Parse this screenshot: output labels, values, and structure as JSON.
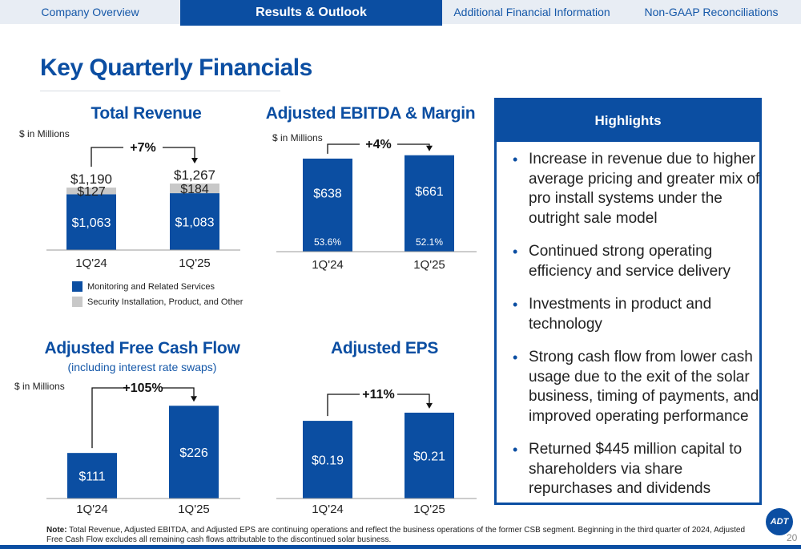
{
  "nav": {
    "tabs": [
      {
        "label": "Company Overview"
      },
      {
        "label": "Results & Outlook"
      },
      {
        "label": "Additional Financial Information"
      },
      {
        "label": "Non-GAAP Reconciliations"
      }
    ],
    "active_index": 1
  },
  "page_title": "Key Quarterly Financials",
  "colors": {
    "brand": "#0b4ea2",
    "gray_bar": "#c8c8c8"
  },
  "chart_data": [
    {
      "type": "bar",
      "stacked": true,
      "title": "Total Revenue",
      "unit_label": "$ in Millions",
      "categories": [
        "1Q'24",
        "1Q'25"
      ],
      "series": [
        {
          "name": "Monitoring and Related Services",
          "values": [
            1063,
            1083
          ],
          "labels": [
            "$1,063",
            "$1,083"
          ],
          "color": "#0b4ea2"
        },
        {
          "name": "Security Installation, Product, and Other",
          "values": [
            127,
            184
          ],
          "labels": [
            "$127",
            "$184"
          ],
          "color": "#c8c8c8"
        }
      ],
      "totals": [
        1190,
        1267
      ],
      "total_labels": [
        "$1,190",
        "$1,267"
      ],
      "change_label": "+7%"
    },
    {
      "type": "bar",
      "title": "Adjusted EBITDA & Margin",
      "unit_label": "$ in Millions",
      "categories": [
        "1Q'24",
        "1Q'25"
      ],
      "values": [
        638,
        661
      ],
      "labels": [
        "$638",
        "$661"
      ],
      "margins": [
        "53.6%",
        "52.1%"
      ],
      "change_label": "+4%"
    },
    {
      "type": "bar",
      "title": "Adjusted Free Cash Flow",
      "subtitle": "(including interest rate swaps)",
      "unit_label": "$ in Millions",
      "categories": [
        "1Q'24",
        "1Q'25"
      ],
      "values": [
        111,
        226
      ],
      "labels": [
        "$111",
        "$226"
      ],
      "change_label": "+105%"
    },
    {
      "type": "bar",
      "title": "Adjusted EPS",
      "categories": [
        "1Q'24",
        "1Q'25"
      ],
      "values": [
        0.19,
        0.21
      ],
      "labels": [
        "$0.19",
        "$0.21"
      ],
      "change_label": "+11%"
    }
  ],
  "highlights": {
    "title": "Highlights",
    "items": [
      "Increase in revenue due to higher average pricing and greater mix of pro install systems under the outright sale model",
      "Continued strong operating efficiency and service delivery",
      "Investments in product and technology",
      "Strong cash flow from lower cash usage due to the exit of the solar business, timing of payments, and improved operating performance",
      "Returned $445 million capital to shareholders via share repurchases and dividends"
    ]
  },
  "note": {
    "label": "Note:",
    "text": "Total Revenue, Adjusted EBITDA, and Adjusted EPS are continuing operations and reflect the business operations of the former CSB segment. Beginning in the third quarter of 2024, Adjusted Free Cash Flow excludes all remaining cash flows attributable to the discontinued solar business."
  },
  "logo_text": "ADT",
  "page_number": "20"
}
